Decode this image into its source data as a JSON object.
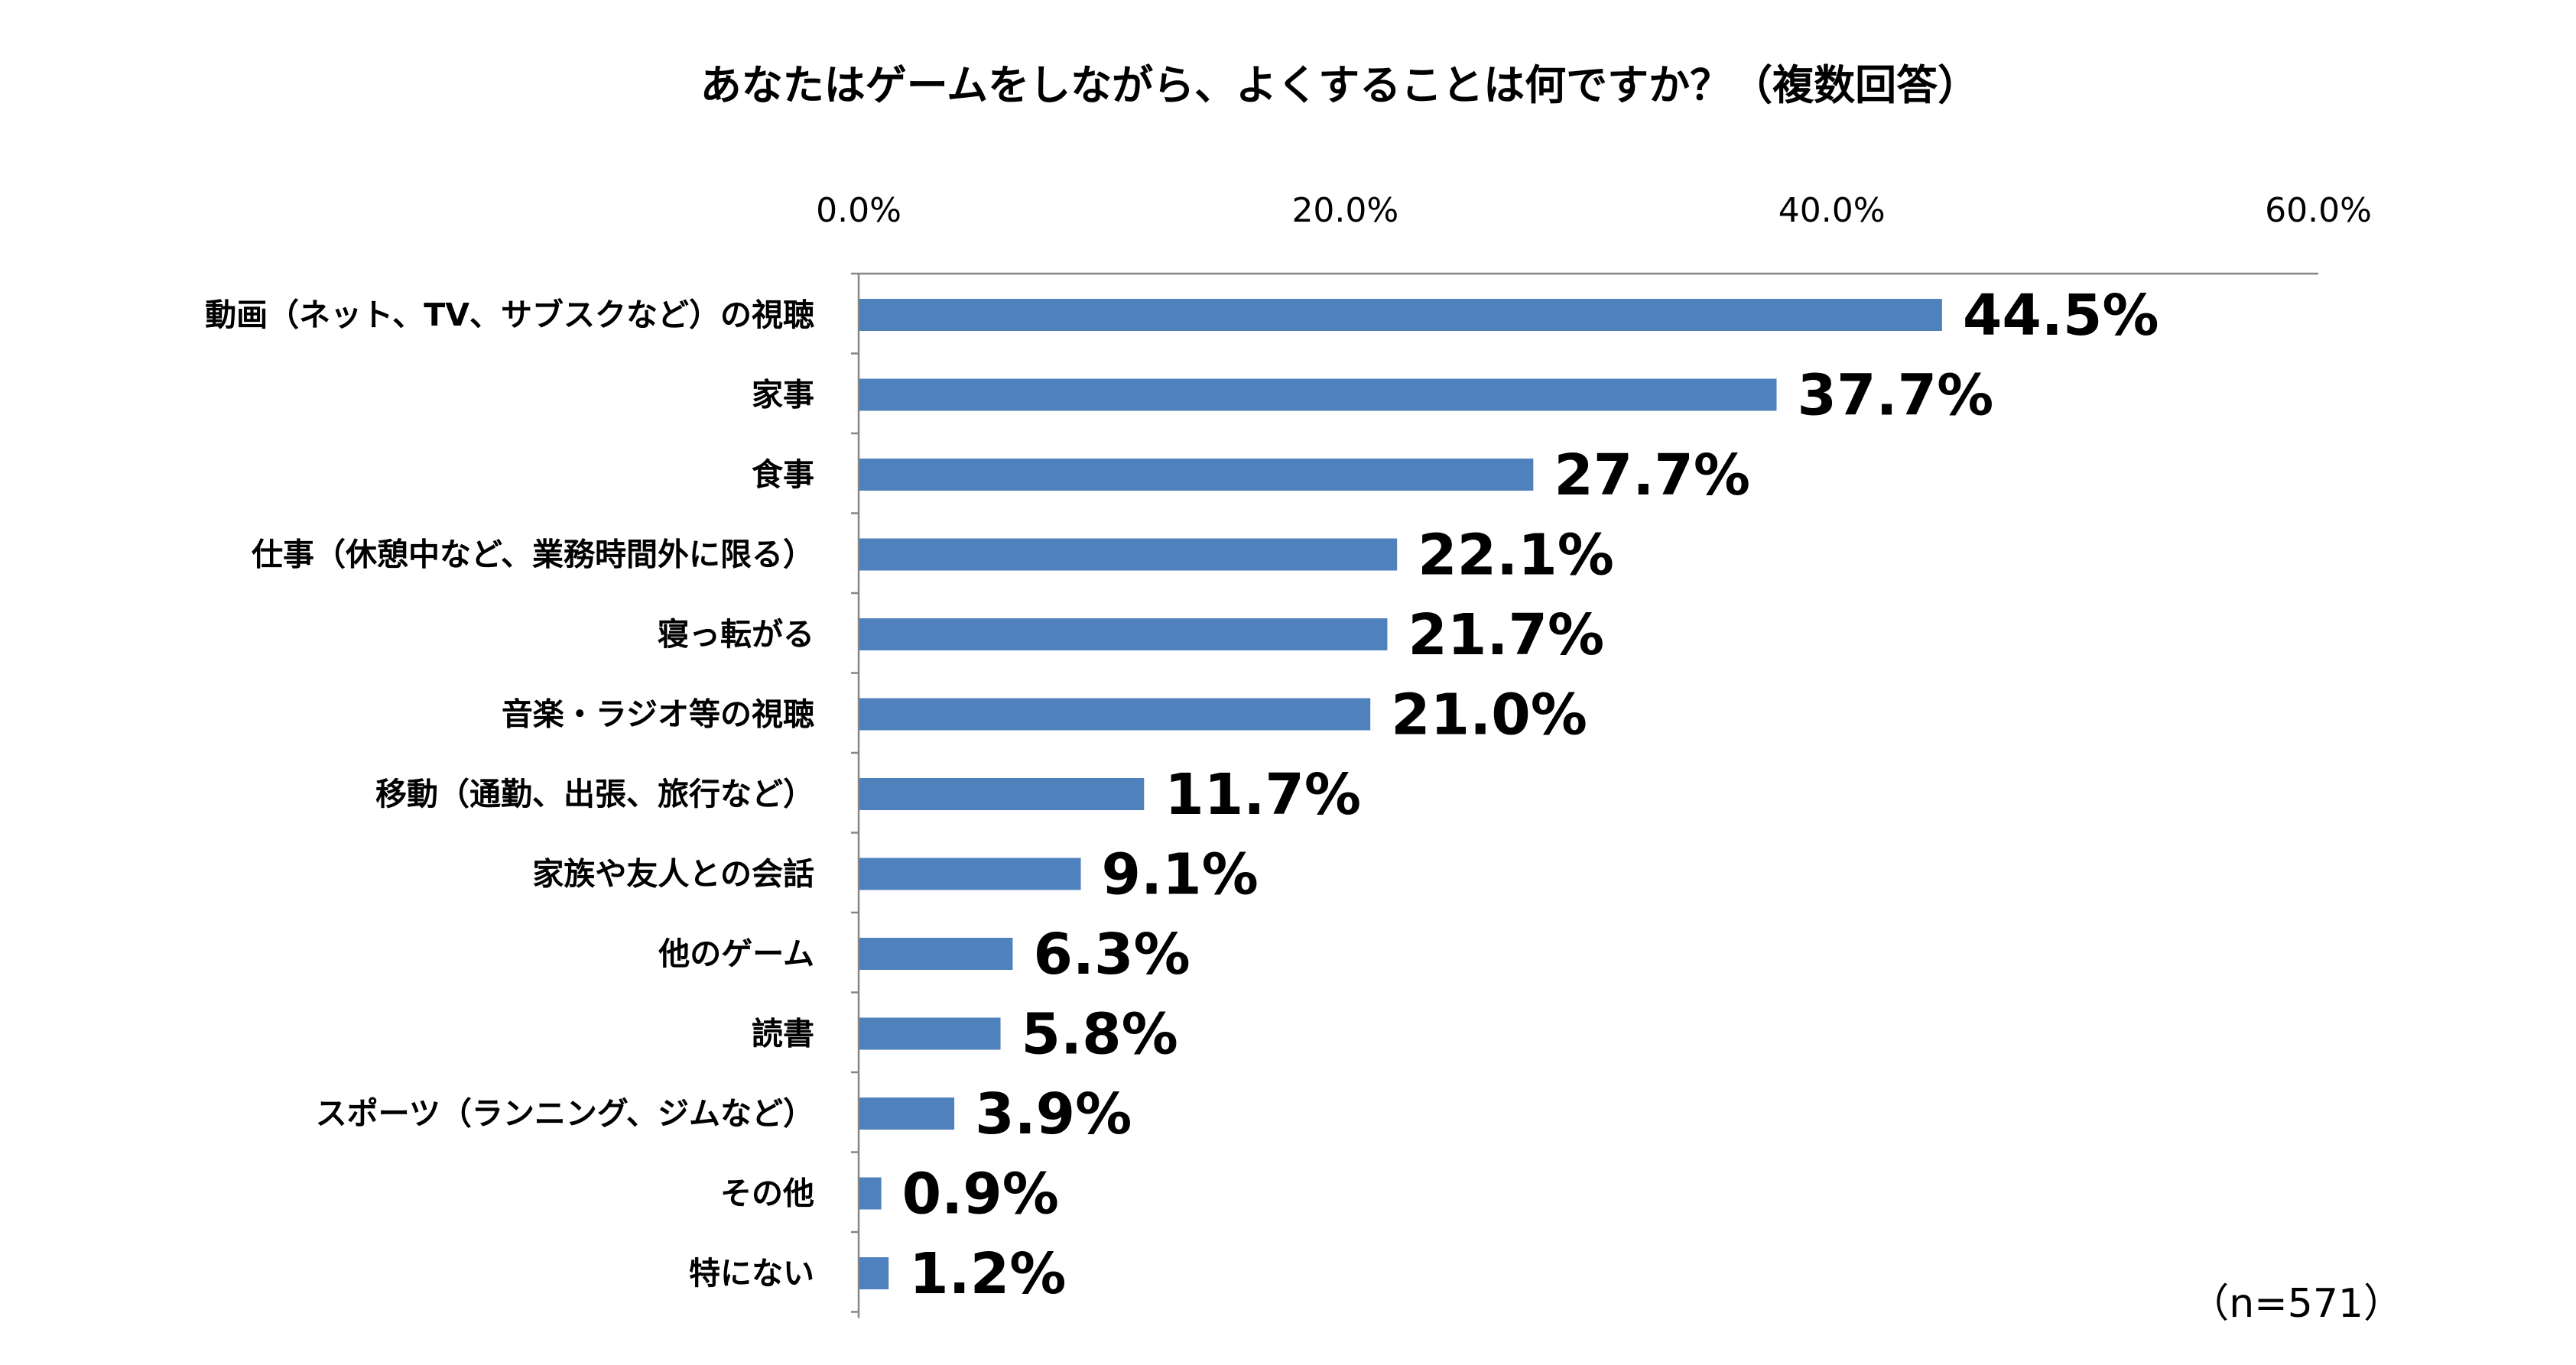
{
  "chart_data": {
    "type": "bar",
    "orientation": "horizontal",
    "title": "あなたはゲームをしながら、よくすることは何ですか？（複数回答）",
    "categories": [
      "動画（ネット、TV、サブスクなど）の視聴",
      "家事",
      "食事",
      "仕事（休憩中など、業務時間外に限る）",
      "寝っ転がる",
      "音楽・ラジオ等の視聴",
      "移動（通勤、出張、旅行など）",
      "家族や友人との会話",
      "他のゲーム",
      "読書",
      "スポーツ（ランニング、ジムなど）",
      "その他",
      "特にない"
    ],
    "values": [
      44.5,
      37.7,
      27.7,
      22.1,
      21.7,
      21.0,
      11.7,
      9.1,
      6.3,
      5.8,
      3.9,
      0.9,
      1.2
    ],
    "value_labels": [
      "44.5%",
      "37.7%",
      "27.7%",
      "22.1%",
      "21.7%",
      "21.0%",
      "11.7%",
      "9.1%",
      "6.3%",
      "5.8%",
      "3.9%",
      "0.9%",
      "1.2%"
    ],
    "xlim": [
      0,
      60
    ],
    "x_ticks": [
      0,
      20,
      40,
      60
    ],
    "x_tick_labels": [
      "0.0%",
      "20.0%",
      "40.0%",
      "60.0%"
    ],
    "x_axis_position": "top",
    "grid": false,
    "bar_color": "#4F81BD",
    "note": "（n=571）"
  }
}
